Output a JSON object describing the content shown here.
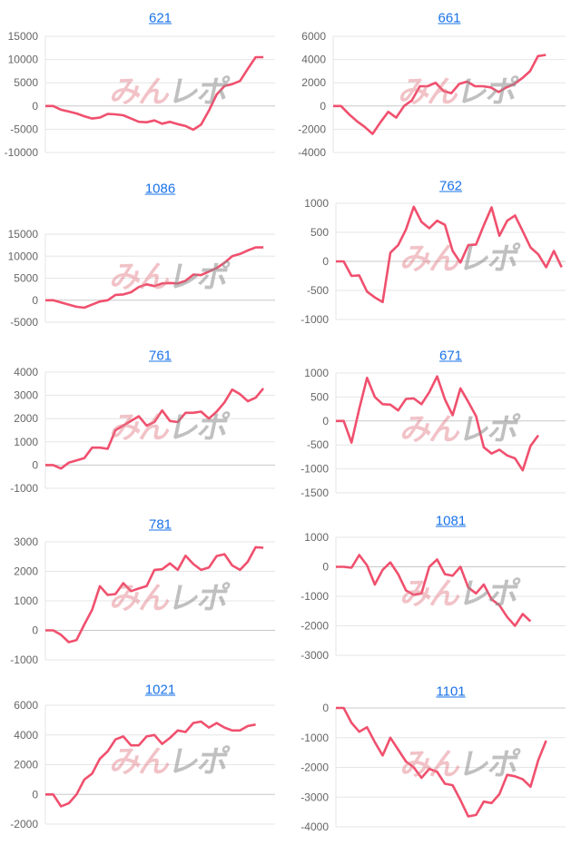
{
  "watermark": {
    "part1": "みん",
    "part2": "レポ"
  },
  "line_color": "#f0506e",
  "chart_data": [
    {
      "type": "line",
      "title": "621",
      "ylim": [
        -10000,
        15000
      ],
      "yticks": [
        15000,
        10000,
        5000,
        0,
        -5000,
        -10000
      ],
      "values": [
        0,
        0,
        -800,
        -1200,
        -1600,
        -2200,
        -2700,
        -2500,
        -1700,
        -1800,
        -2000,
        -2700,
        -3400,
        -3500,
        -3100,
        -3800,
        -3400,
        -3900,
        -4300,
        -5100,
        -4000,
        -1000,
        2500,
        4300,
        4700,
        5400,
        8000,
        10500,
        10500
      ]
    },
    {
      "type": "line",
      "title": "661",
      "ylim": [
        -4000,
        6000
      ],
      "yticks": [
        6000,
        4000,
        2000,
        0,
        -2000,
        -4000
      ],
      "values": [
        0,
        0,
        -700,
        -1300,
        -1800,
        -2400,
        -1400,
        -500,
        -1000,
        0,
        500,
        1700,
        1700,
        2000,
        1300,
        1100,
        1900,
        2100,
        1700,
        1700,
        1600,
        1200,
        1600,
        1900,
        2400,
        3000,
        4300,
        4400
      ]
    },
    {
      "type": "line",
      "title": "1086",
      "ylim": [
        -5000,
        15000
      ],
      "yticks": [
        15000,
        10000,
        5000,
        0,
        -5000
      ],
      "values": [
        0,
        0,
        -500,
        -1000,
        -1500,
        -1700,
        -1000,
        -300,
        0,
        1200,
        1300,
        1800,
        3000,
        3600,
        3200,
        3800,
        3900,
        3800,
        4400,
        5800,
        5700,
        6500,
        7300,
        8500,
        10000,
        10500,
        11300,
        12000,
        12000
      ]
    },
    {
      "type": "line",
      "title": "762",
      "ylim": [
        -1000,
        1000
      ],
      "yticks": [
        1000,
        500,
        0,
        -500,
        -1000
      ],
      "values": [
        0,
        0,
        -250,
        -240,
        -520,
        -620,
        -700,
        150,
        280,
        550,
        940,
        680,
        570,
        700,
        630,
        180,
        -20,
        280,
        290,
        620,
        930,
        440,
        700,
        790,
        520,
        240,
        120,
        -100,
        180,
        -100
      ]
    },
    {
      "type": "line",
      "title": "761",
      "ylim": [
        -1000,
        4000
      ],
      "yticks": [
        4000,
        3000,
        2000,
        1000,
        0,
        -1000
      ],
      "values": [
        0,
        0,
        -150,
        100,
        200,
        300,
        750,
        750,
        700,
        1500,
        1700,
        1900,
        2100,
        1700,
        1850,
        2350,
        1900,
        1850,
        2250,
        2250,
        2300,
        2000,
        2300,
        2700,
        3250,
        3050,
        2750,
        2900,
        3300
      ]
    },
    {
      "type": "line",
      "title": "671",
      "ylim": [
        -1500,
        1000
      ],
      "yticks": [
        1000,
        500,
        0,
        -500,
        -1000,
        -1500
      ],
      "values": [
        0,
        0,
        -450,
        250,
        900,
        500,
        350,
        340,
        220,
        460,
        470,
        350,
        600,
        930,
        450,
        120,
        680,
        400,
        100,
        -550,
        -680,
        -600,
        -720,
        -780,
        -1030,
        -520,
        -300
      ]
    },
    {
      "type": "line",
      "title": "781",
      "ylim": [
        -1000,
        3000
      ],
      "yticks": [
        3000,
        2000,
        1000,
        0,
        -1000
      ],
      "values": [
        0,
        0,
        -150,
        -400,
        -330,
        200,
        700,
        1500,
        1200,
        1230,
        1600,
        1330,
        1420,
        1500,
        2050,
        2070,
        2270,
        2050,
        2530,
        2250,
        2050,
        2130,
        2520,
        2580,
        2200,
        2050,
        2330,
        2820,
        2800
      ]
    },
    {
      "type": "line",
      "title": "1081",
      "ylim": [
        -3000,
        1000
      ],
      "yticks": [
        1000,
        0,
        -1000,
        -2000,
        -3000
      ],
      "values": [
        0,
        0,
        -30,
        400,
        50,
        -600,
        -100,
        150,
        -250,
        -800,
        -950,
        -900,
        0,
        250,
        -250,
        -300,
        0,
        -700,
        -900,
        -600,
        -1100,
        -1300,
        -1700,
        -2000,
        -1600,
        -1850
      ]
    },
    {
      "type": "line",
      "title": "1021",
      "ylim": [
        -2000,
        6000
      ],
      "yticks": [
        6000,
        4000,
        2000,
        0,
        -2000
      ],
      "values": [
        0,
        0,
        -800,
        -600,
        0,
        1000,
        1400,
        2400,
        2900,
        3700,
        3900,
        3300,
        3300,
        3900,
        4000,
        3400,
        3800,
        4300,
        4200,
        4800,
        4900,
        4500,
        4800,
        4500,
        4300,
        4300,
        4600,
        4700
      ]
    },
    {
      "type": "line",
      "title": "1101",
      "ylim": [
        -4000,
        0
      ],
      "yticks": [
        0,
        -1000,
        -2000,
        -3000,
        -4000
      ],
      "values": [
        0,
        0,
        -500,
        -800,
        -650,
        -1150,
        -1600,
        -1000,
        -1400,
        -1800,
        -2000,
        -2350,
        -2050,
        -2150,
        -2550,
        -2600,
        -3100,
        -3650,
        -3600,
        -3150,
        -3200,
        -2900,
        -2250,
        -2300,
        -2400,
        -2650,
        -1750,
        -1100
      ]
    }
  ]
}
